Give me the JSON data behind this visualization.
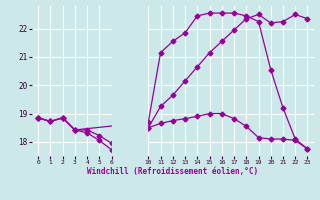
{
  "xlabel": "Windchill (Refroidissement éolien,°C)",
  "bg_color": "#cce8e8",
  "line_color": "#990099",
  "grid_color": "#ffffff",
  "ylim": [
    17.5,
    22.8
  ],
  "yticks": [
    18,
    19,
    20,
    21,
    22
  ],
  "xtick_labels": [
    "0",
    "1",
    "2",
    "3",
    "4",
    "5",
    "6",
    "10",
    "11",
    "12",
    "13",
    "14",
    "15",
    "16",
    "17",
    "18",
    "19",
    "20",
    "21",
    "22",
    "23"
  ],
  "xtick_pos": [
    0,
    1,
    2,
    3,
    4,
    5,
    6,
    9,
    10,
    11,
    12,
    13,
    14,
    15,
    16,
    17,
    18,
    19,
    20,
    21,
    22
  ],
  "xlim": [
    -0.5,
    22.5
  ],
  "line1_x": [
    0,
    1,
    2,
    3,
    4,
    5,
    6,
    9,
    10,
    11,
    12,
    13,
    14,
    15,
    16,
    17,
    18,
    19,
    20,
    21,
    22
  ],
  "line1_y": [
    18.85,
    18.72,
    18.85,
    18.42,
    18.32,
    18.05,
    17.72,
    18.5,
    18.65,
    18.75,
    18.82,
    18.9,
    19.0,
    19.0,
    18.82,
    18.55,
    18.15,
    18.1,
    18.1,
    18.05,
    17.75
  ],
  "line2_x": [
    0,
    1,
    2,
    3,
    4,
    5,
    6,
    9,
    10,
    11,
    12,
    13,
    14,
    15,
    16,
    17,
    18,
    19,
    20,
    21,
    22
  ],
  "line2_y": [
    18.85,
    18.72,
    18.85,
    18.42,
    18.42,
    18.22,
    17.95,
    18.5,
    19.25,
    19.65,
    20.15,
    20.65,
    21.15,
    21.55,
    21.95,
    22.35,
    22.5,
    22.2,
    22.25,
    22.5,
    22.35
  ],
  "line3_x": [
    0,
    1,
    2,
    3,
    9,
    10,
    11,
    12,
    13,
    14,
    15,
    16,
    17,
    18,
    19,
    20,
    21,
    22
  ],
  "line3_y": [
    18.85,
    18.72,
    18.85,
    18.42,
    18.7,
    21.15,
    21.55,
    21.85,
    22.45,
    22.55,
    22.55,
    22.55,
    22.45,
    22.25,
    20.55,
    19.2,
    18.1,
    17.75
  ],
  "marker": "D",
  "marker_size": 2.5,
  "linewidth": 0.9
}
